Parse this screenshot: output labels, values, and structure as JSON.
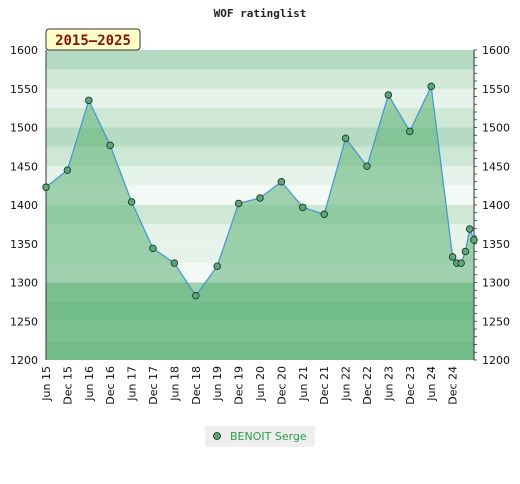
{
  "chart_data": {
    "type": "line",
    "title": "WOF ratinglist",
    "badge": "2015–2025",
    "ylim": [
      1200,
      1600
    ],
    "y_ticks": [
      1200,
      1250,
      1300,
      1350,
      1400,
      1450,
      1500,
      1550,
      1600
    ],
    "x_ticks": [
      "Jun 15",
      "Dec 15",
      "Jun 16",
      "Dec 16",
      "Jun 17",
      "Dec 17",
      "Jun 18",
      "Dec 18",
      "Jun 19",
      "Dec 19",
      "Jun 20",
      "Dec 20",
      "Jun 21",
      "Dec 21",
      "Jun 22",
      "Dec 22",
      "Jun 23",
      "Dec 23",
      "Jun 24",
      "Dec 24"
    ],
    "x_range": [
      0,
      20
    ],
    "series": [
      {
        "name": "BENOIT Serge",
        "color": "#5aa87a",
        "x": [
          0,
          1,
          2,
          3,
          4,
          5,
          6,
          7,
          8,
          9,
          10,
          11,
          12,
          13,
          14,
          15,
          16,
          17,
          18,
          19,
          19.2,
          19.4,
          19.6,
          19.8,
          20
        ],
        "values": [
          1423,
          1445,
          1535,
          1477,
          1404,
          1344,
          1325,
          1283,
          1321,
          1402,
          1409,
          1430,
          1397,
          1388,
          1486,
          1450,
          1542,
          1495,
          1553,
          1333,
          1325,
          1325,
          1340,
          1369,
          1355
        ]
      }
    ],
    "legend_position": "bottom-center",
    "band_colors": [
      "#b5dcc2",
      "#cfe8d6",
      "#e6f3ea",
      "#f3f9f4",
      "#9fd1ae",
      "#8ccaa1",
      "#7dc594"
    ],
    "line_color": "#4a9ad0",
    "fill_color": "#5bb074"
  }
}
